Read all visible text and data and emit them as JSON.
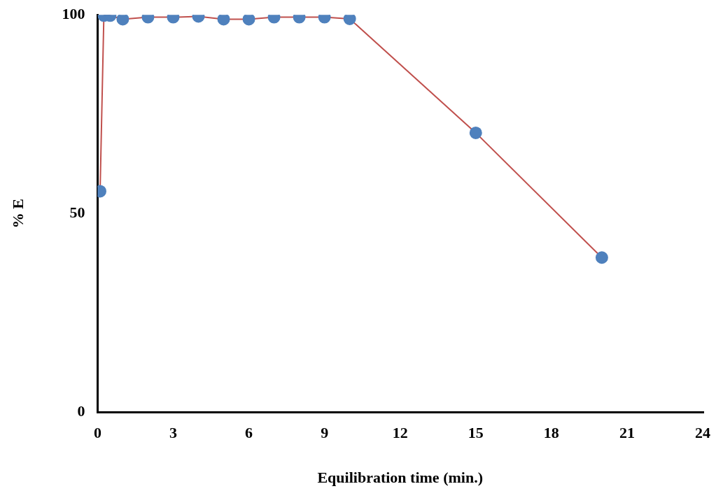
{
  "chart_data": {
    "type": "line",
    "xlabel": "Equilibration time (min.)",
    "ylabel": "% E",
    "x": [
      0.1,
      0.25,
      0.5,
      1,
      2,
      3,
      4,
      5,
      6,
      7,
      8,
      9,
      10,
      15,
      20
    ],
    "series": [
      {
        "color": "#c0504d",
        "colors": [
          "#4f81bd",
          "#4f81bd",
          "#4f81bd",
          "#4f81bd",
          "#4f81bd",
          "#4f81bd",
          "#4f81bd",
          "#4f81bd",
          "#4f81bd",
          "#4f81bd",
          "#4f81bd",
          "#4f81bd",
          "#4f81bd",
          "#4f81bd",
          "#4f81bd"
        ],
        "values": [
          55.6,
          99.8,
          99.8,
          98.9,
          99.4,
          99.4,
          99.6,
          98.9,
          98.9,
          99.4,
          99.4,
          99.4,
          99.0,
          70.3,
          38.9
        ]
      }
    ],
    "marker": "circle",
    "line_style": "solid",
    "xlim": [
      0,
      24
    ],
    "xticks": [
      0,
      3,
      6,
      9,
      12,
      15,
      18,
      21,
      24
    ],
    "ylim": [
      0,
      100
    ],
    "yticks": [
      0,
      50,
      100
    ],
    "grid": false,
    "legend": false
  }
}
